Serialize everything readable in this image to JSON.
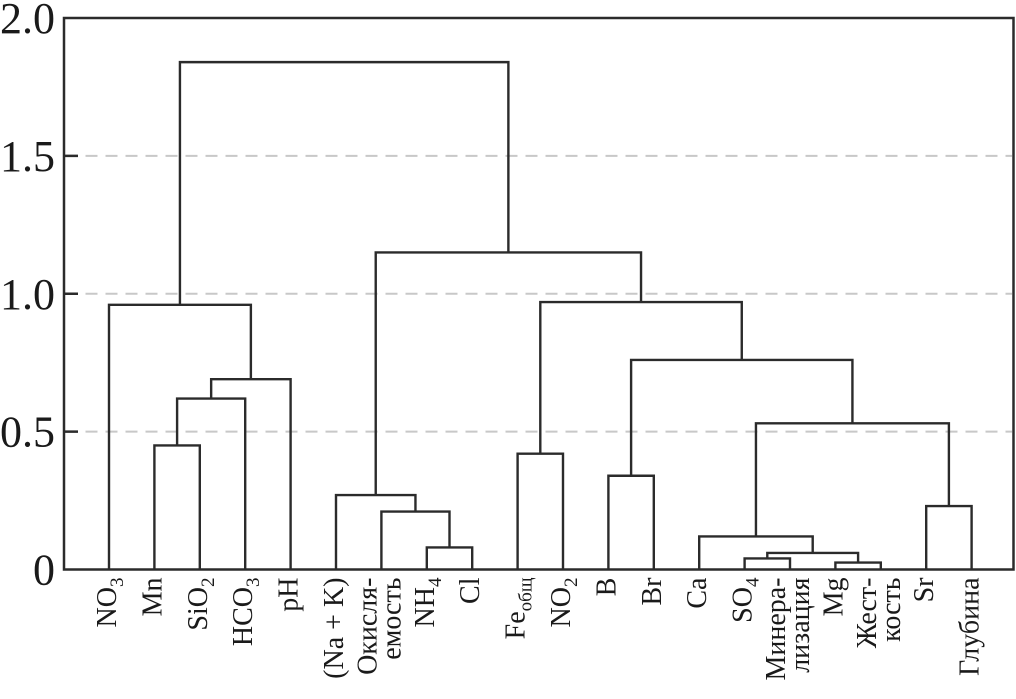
{
  "figure": {
    "kind": "hierarchical-clustering-dendrogram",
    "background": "#ffffff",
    "line_color": "#2b2b2b",
    "grid_color": "#c8c8c8",
    "text_color": "#1a1a1a"
  },
  "chart_data": {
    "type": "dendrogram",
    "orientation": "top",
    "title": "",
    "xlabel": "",
    "ylabel": "",
    "ylim": [
      0,
      2.0
    ],
    "yticks": [
      0,
      0.5,
      1.0,
      1.5,
      2.0
    ],
    "ytick_labels": [
      "0",
      "0.5",
      "1.0",
      "1.5",
      "2.0"
    ],
    "gridlines_at": [
      0.5,
      1.0,
      1.5
    ],
    "grid_style": "dashed",
    "leaf_order": [
      "NO_3",
      "Mn",
      "SiO_2",
      "HCO_3",
      "pH",
      "(Na + K)",
      "Окисля-|емость",
      "NH_4",
      "Cl",
      "Fe_общ",
      "NO_2",
      "B",
      "Br",
      "Ca",
      "SO_4",
      "Минера-|лизация",
      "Mg",
      "Жест-|кость",
      "Sr",
      "Глубина"
    ],
    "tree": {
      "height": 1.84,
      "children": [
        {
          "height": 0.96,
          "children": [
            "NO_3",
            {
              "height": 0.69,
              "children": [
                {
                  "height": 0.62,
                  "children": [
                    {
                      "height": 0.45,
                      "children": [
                        "Mn",
                        "SiO_2"
                      ]
                    },
                    "HCO_3"
                  ]
                },
                "pH"
              ]
            }
          ]
        },
        {
          "height": 1.15,
          "children": [
            {
              "height": 0.27,
              "children": [
                "(Na + K)",
                {
                  "height": 0.21,
                  "children": [
                    "Окисля-|емость",
                    {
                      "height": 0.08,
                      "children": [
                        "NH_4",
                        "Cl"
                      ]
                    }
                  ]
                }
              ]
            },
            {
              "height": 0.97,
              "children": [
                {
                  "height": 0.42,
                  "children": [
                    "Fe_общ",
                    "NO_2"
                  ]
                },
                {
                  "height": 0.76,
                  "children": [
                    {
                      "height": 0.34,
                      "children": [
                        "B",
                        "Br"
                      ]
                    },
                    {
                      "height": 0.53,
                      "children": [
                        {
                          "height": 0.12,
                          "children": [
                            "Ca",
                            {
                              "height": 0.06,
                              "children": [
                                {
                                  "height": 0.04,
                                  "children": [
                                    "SO_4",
                                    "Минера-|лизация"
                                  ]
                                },
                                {
                                  "height": 0.025,
                                  "children": [
                                    "Mg",
                                    "Жест-|кость"
                                  ]
                                }
                              ]
                            }
                          ]
                        },
                        {
                          "height": 0.23,
                          "children": [
                            "Sr",
                            "Глубина"
                          ]
                        }
                      ]
                    }
                  ]
                }
              ]
            }
          ]
        }
      ]
    }
  }
}
